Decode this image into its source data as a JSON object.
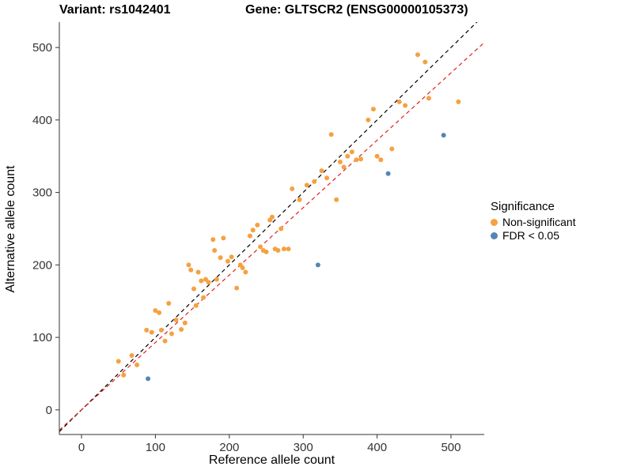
{
  "titles": {
    "left": "Variant: rs1042401",
    "right": "Gene: GLTSCR2 (ENSG00000105373)"
  },
  "chart_data": {
    "type": "scatter",
    "title": "Variant: rs1042401 / Gene: GLTSCR2 (ENSG00000105373)",
    "xlabel": "Reference allele count",
    "ylabel": "Alternative allele count",
    "xlim": [
      -30,
      545
    ],
    "ylim": [
      -34,
      535
    ],
    "xticks": [
      0,
      100,
      200,
      300,
      400,
      500
    ],
    "yticks": [
      0,
      100,
      200,
      300,
      400,
      500
    ],
    "grid": false,
    "legend": {
      "title": "Significance",
      "position": "right",
      "items": [
        {
          "label": "Non-significant",
          "color": "#F5A142"
        },
        {
          "label": "FDR < 0.05",
          "color": "#5585B5"
        }
      ]
    },
    "series": [
      {
        "name": "Non-significant",
        "color": "#F5A142",
        "points": [
          [
            50,
            67
          ],
          [
            57,
            48
          ],
          [
            68,
            75
          ],
          [
            75,
            62
          ],
          [
            88,
            110
          ],
          [
            95,
            107
          ],
          [
            100,
            137
          ],
          [
            105,
            134
          ],
          [
            108,
            110
          ],
          [
            113,
            95
          ],
          [
            118,
            147
          ],
          [
            122,
            105
          ],
          [
            128,
            124
          ],
          [
            135,
            111
          ],
          [
            140,
            120
          ],
          [
            145,
            200
          ],
          [
            148,
            193
          ],
          [
            152,
            167
          ],
          [
            155,
            144
          ],
          [
            158,
            190
          ],
          [
            162,
            178
          ],
          [
            165,
            155
          ],
          [
            168,
            180
          ],
          [
            172,
            176
          ],
          [
            178,
            235
          ],
          [
            180,
            220
          ],
          [
            183,
            180
          ],
          [
            188,
            210
          ],
          [
            192,
            237
          ],
          [
            198,
            205
          ],
          [
            203,
            211
          ],
          [
            210,
            168
          ],
          [
            215,
            200
          ],
          [
            218,
            196
          ],
          [
            222,
            190
          ],
          [
            228,
            240
          ],
          [
            232,
            248
          ],
          [
            238,
            255
          ],
          [
            242,
            225
          ],
          [
            246,
            220
          ],
          [
            250,
            218
          ],
          [
            255,
            262
          ],
          [
            258,
            266
          ],
          [
            262,
            222
          ],
          [
            266,
            220
          ],
          [
            270,
            250
          ],
          [
            274,
            222
          ],
          [
            280,
            222
          ],
          [
            285,
            305
          ],
          [
            295,
            290
          ],
          [
            305,
            310
          ],
          [
            315,
            315
          ],
          [
            325,
            330
          ],
          [
            332,
            320
          ],
          [
            338,
            380
          ],
          [
            345,
            290
          ],
          [
            350,
            342
          ],
          [
            355,
            335
          ],
          [
            360,
            350
          ],
          [
            366,
            356
          ],
          [
            372,
            345
          ],
          [
            378,
            346
          ],
          [
            388,
            400
          ],
          [
            395,
            415
          ],
          [
            400,
            350
          ],
          [
            405,
            345
          ],
          [
            420,
            360
          ],
          [
            430,
            425
          ],
          [
            438,
            420
          ],
          [
            455,
            490
          ],
          [
            465,
            480
          ],
          [
            470,
            430
          ],
          [
            510,
            425
          ]
        ]
      },
      {
        "name": "FDR < 0.05",
        "color": "#5585B5",
        "points": [
          [
            90,
            43
          ],
          [
            320,
            200
          ],
          [
            415,
            326
          ],
          [
            490,
            379
          ]
        ]
      }
    ],
    "lines": [
      {
        "name": "identity-line",
        "color": "#000000",
        "dashed": true,
        "slope": 1,
        "intercept": 0
      },
      {
        "name": "fit-line",
        "color": "#E02020",
        "dashed": true,
        "slope": 0.93,
        "intercept": 0
      }
    ],
    "point_radius": 3,
    "axis_color": "#333333"
  }
}
